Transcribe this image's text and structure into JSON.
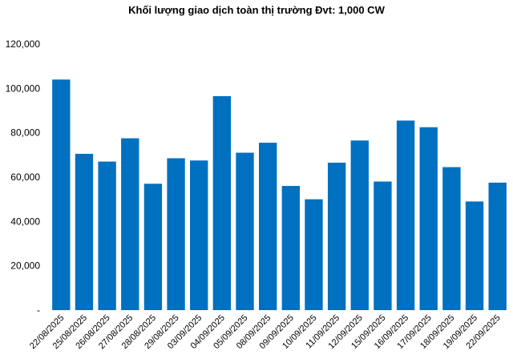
{
  "chart_data": {
    "type": "bar",
    "title": "Khối lượng giao dịch toàn thị trường Đvt: 1,000 CW",
    "xlabel": "",
    "ylabel": "",
    "ylim": [
      0,
      120000
    ],
    "yticks": [
      0,
      20000,
      40000,
      60000,
      80000,
      100000,
      120000
    ],
    "ytick_labels": [
      "-",
      "20,000",
      "40,000",
      "60,000",
      "80,000",
      "100,000",
      "120,000"
    ],
    "grid": false,
    "bar_color": "#0070C0",
    "categories": [
      "22/08/2025",
      "25/08/2025",
      "26/08/2025",
      "27/08/2025",
      "28/08/2025",
      "29/08/2025",
      "03/09/2025",
      "04/09/2025",
      "05/09/2025",
      "08/09/2025",
      "09/09/2025",
      "10/09/2025",
      "11/09/2025",
      "12/09/2025",
      "15/09/2025",
      "16/09/2025",
      "17/09/2025",
      "18/09/2025",
      "19/09/2025",
      "22/09/2025"
    ],
    "values": [
      104000,
      70500,
      67000,
      77500,
      57000,
      68500,
      67500,
      96500,
      71000,
      75500,
      56000,
      50000,
      66500,
      76500,
      58000,
      85500,
      82500,
      64500,
      49000,
      57500
    ]
  }
}
